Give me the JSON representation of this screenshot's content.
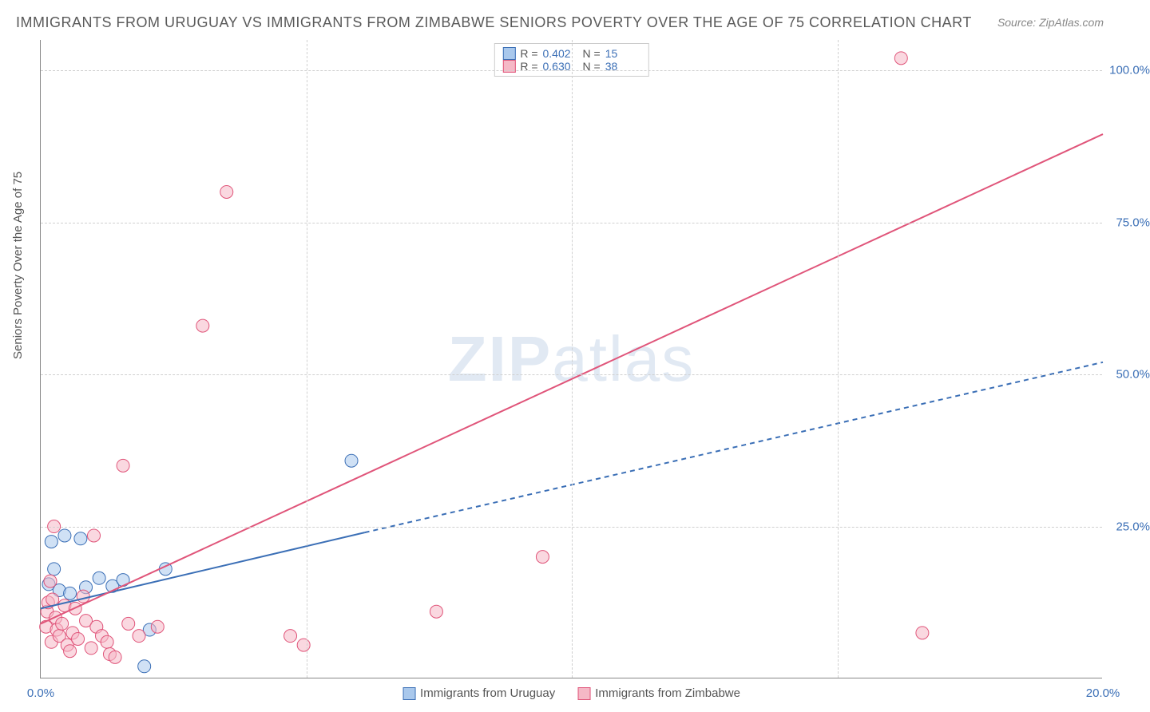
{
  "title": "IMMIGRANTS FROM URUGUAY VS IMMIGRANTS FROM ZIMBABWE SENIORS POVERTY OVER THE AGE OF 75 CORRELATION CHART",
  "source": "Source: ZipAtlas.com",
  "y_axis_title": "Seniors Poverty Over the Age of 75",
  "watermark_a": "ZIP",
  "watermark_b": "atlas",
  "chart": {
    "type": "scatter",
    "background_color": "#ffffff",
    "grid_color": "#d0d0d0",
    "axis_color": "#888888",
    "label_color": "#3b6fb6",
    "title_color": "#5a5a5a",
    "title_fontsize": 18,
    "label_fontsize": 15,
    "marker_radius": 8,
    "xlim": [
      0,
      20
    ],
    "ylim": [
      0,
      105
    ],
    "x_ticks": [
      0,
      5,
      10,
      15,
      20
    ],
    "x_tick_labels": [
      "0.0%",
      "",
      "",
      "",
      "20.0%"
    ],
    "y_ticks": [
      25,
      50,
      75,
      100
    ],
    "y_tick_labels": [
      "25.0%",
      "50.0%",
      "75.0%",
      "100.0%"
    ],
    "series": [
      {
        "name": "Immigrants from Uruguay",
        "fill": "#a9c8ec",
        "stroke": "#3b6fb6",
        "fill_opacity": 0.55,
        "R": "0.402",
        "N": "15",
        "points": [
          [
            0.15,
            15.5
          ],
          [
            0.2,
            22.5
          ],
          [
            0.25,
            18.0
          ],
          [
            0.35,
            14.5
          ],
          [
            0.45,
            23.5
          ],
          [
            0.55,
            14.0
          ],
          [
            0.75,
            23.0
          ],
          [
            0.85,
            15.0
          ],
          [
            1.1,
            16.5
          ],
          [
            1.35,
            15.2
          ],
          [
            1.55,
            16.2
          ],
          [
            1.95,
            2.0
          ],
          [
            2.05,
            8.0
          ],
          [
            2.35,
            18.0
          ],
          [
            5.85,
            35.8
          ]
        ],
        "trend": {
          "x1": 0,
          "y1": 11.5,
          "x2": 6.1,
          "y2": 24.0,
          "x3": 20,
          "y3": 52.0,
          "dashed_from": 6.1,
          "line_width": 2
        }
      },
      {
        "name": "Immigrants from Zimbabwe",
        "fill": "#f5b8c6",
        "stroke": "#e0557a",
        "fill_opacity": 0.55,
        "R": "0.630",
        "N": "38",
        "points": [
          [
            0.1,
            8.5
          ],
          [
            0.12,
            11.0
          ],
          [
            0.14,
            12.5
          ],
          [
            0.18,
            16.0
          ],
          [
            0.2,
            6.0
          ],
          [
            0.22,
            13.0
          ],
          [
            0.25,
            25.0
          ],
          [
            0.28,
            10.0
          ],
          [
            0.3,
            8.0
          ],
          [
            0.35,
            7.0
          ],
          [
            0.4,
            9.0
          ],
          [
            0.45,
            12.0
          ],
          [
            0.5,
            5.5
          ],
          [
            0.55,
            4.5
          ],
          [
            0.6,
            7.5
          ],
          [
            0.65,
            11.5
          ],
          [
            0.7,
            6.5
          ],
          [
            0.8,
            13.5
          ],
          [
            0.85,
            9.5
          ],
          [
            0.95,
            5.0
          ],
          [
            1.0,
            23.5
          ],
          [
            1.05,
            8.5
          ],
          [
            1.15,
            7.0
          ],
          [
            1.25,
            6.0
          ],
          [
            1.3,
            4.0
          ],
          [
            1.4,
            3.5
          ],
          [
            1.55,
            35.0
          ],
          [
            1.65,
            9.0
          ],
          [
            1.85,
            7.0
          ],
          [
            2.2,
            8.5
          ],
          [
            3.05,
            58.0
          ],
          [
            3.5,
            80.0
          ],
          [
            4.7,
            7.0
          ],
          [
            4.95,
            5.5
          ],
          [
            7.45,
            11.0
          ],
          [
            9.45,
            20.0
          ],
          [
            16.2,
            102.0
          ],
          [
            16.6,
            7.5
          ]
        ],
        "trend": {
          "x1": 0,
          "y1": 9.0,
          "x2": 20,
          "y2": 89.5,
          "line_width": 2
        }
      }
    ]
  }
}
